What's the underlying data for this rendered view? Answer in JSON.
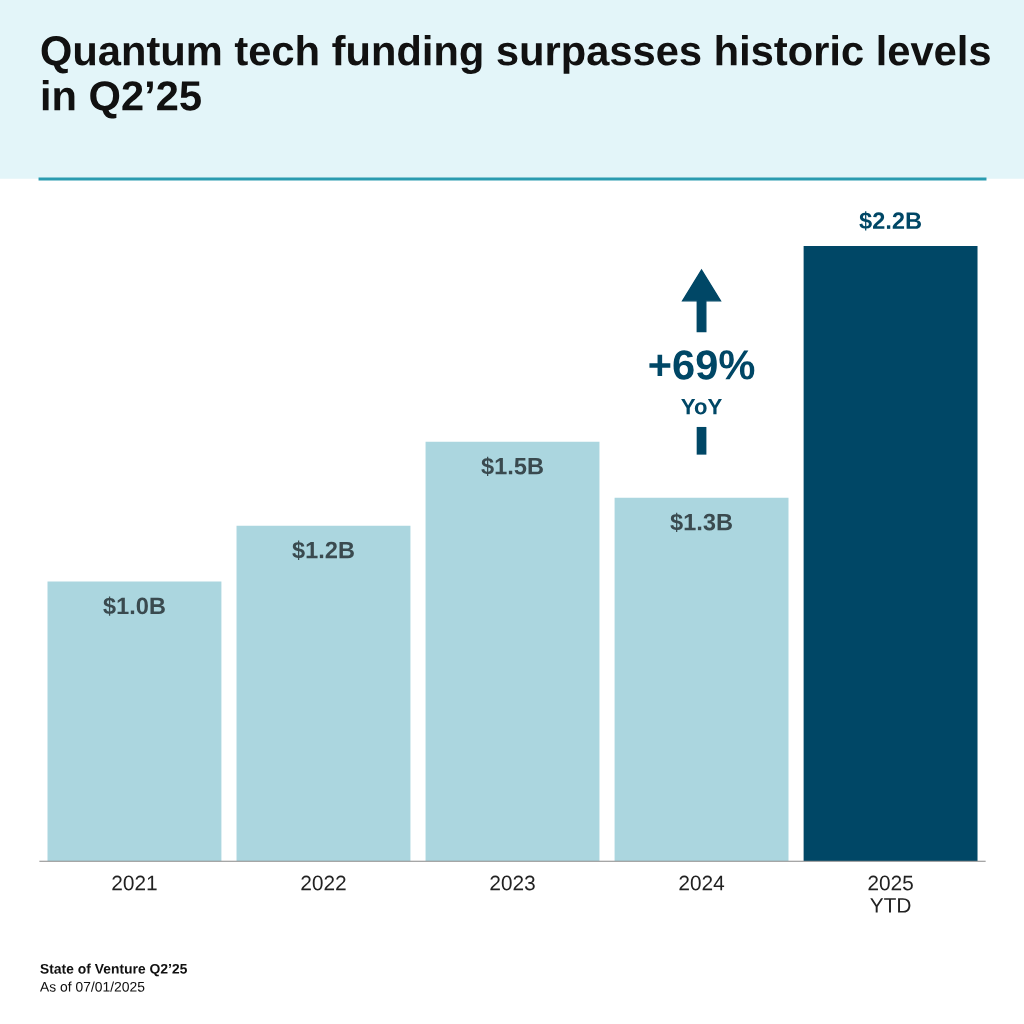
{
  "chart_data": {
    "type": "bar",
    "title": "Quantum tech funding surpasses historic levels in Q2’25",
    "categories": [
      "2021",
      "2022",
      "2023",
      "2024",
      "2025\nYTD"
    ],
    "values": [
      1.0,
      1.2,
      1.5,
      1.3,
      2.2
    ],
    "colors": [
      "#abd6df",
      "#abd6df",
      "#abd6df",
      "#abd6df",
      "#004766"
    ],
    "value_labels": [
      "$1.0B",
      "$1.2B",
      "$1.5B",
      "$1.3B",
      "$2.2B"
    ],
    "annotations": [
      "+69%",
      "YoY",
      "State of Venture Q2’25",
      "As of 07/01/2025"
    ],
    "grid": false,
    "legend": false
  }
}
